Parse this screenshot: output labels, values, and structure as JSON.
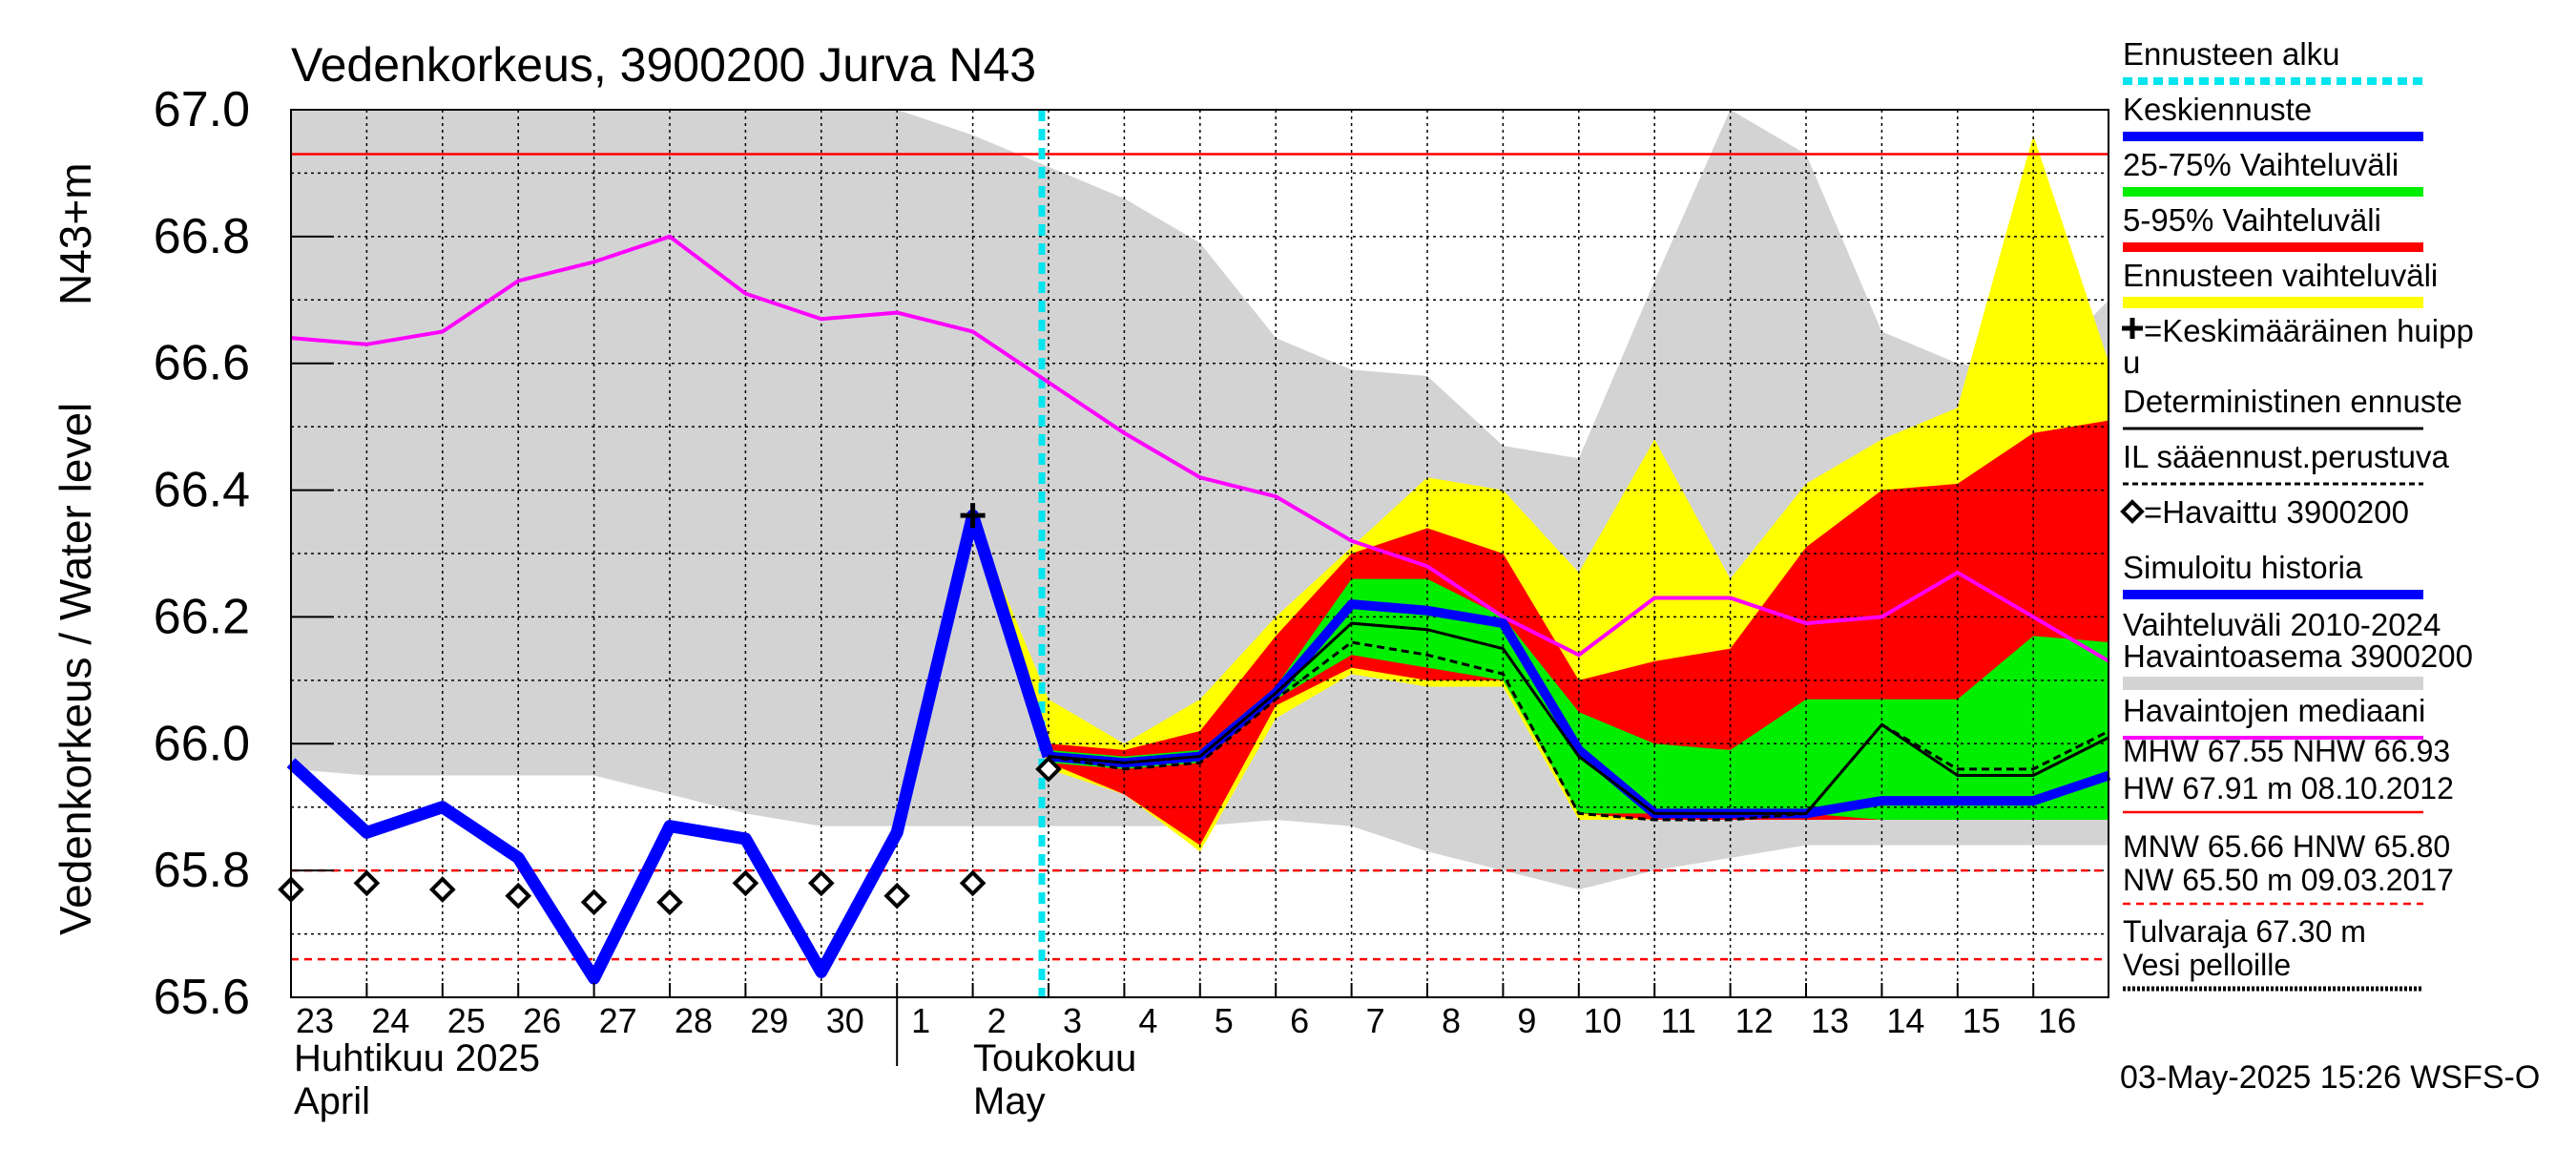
{
  "chart_data": {
    "type": "line",
    "title": "Vedenkorkeus, 3900200 Jurva N43",
    "ylabel": "Vedenkorkeus / Water level",
    "ylabel_unit": "N43+m",
    "ylim": [
      65.6,
      67.0
    ],
    "y_ticks": [
      "65.6",
      "65.8",
      "66.0",
      "66.2",
      "66.4",
      "66.6",
      "66.8",
      "67.0"
    ],
    "grid": true,
    "legend_position": "right",
    "x_tick_labels": [
      "23",
      "24",
      "25",
      "26",
      "27",
      "28",
      "29",
      "30",
      "1",
      "2",
      "3",
      "4",
      "5",
      "6",
      "7",
      "8",
      "9",
      "10",
      "11",
      "12",
      "13",
      "14",
      "15",
      "16"
    ],
    "month_labels": [
      {
        "fi": "Huhtikuu  2025",
        "en": "April"
      },
      {
        "fi": "Toukokuu",
        "en": "May"
      }
    ],
    "forecast_start_index": 10,
    "colors": {
      "forecast_start": "#00e5ee",
      "mean_forecast": "#0000ff",
      "band_25_75": "#00ee00",
      "band_5_95": "#ff0000",
      "band_forecast": "#ffff00",
      "deterministic": "#000000",
      "weather_based": "#000000",
      "observed": "#000000",
      "simulated_history": "#0000ff",
      "variation_band": "#d3d3d3",
      "median": "#ff00ff",
      "mhw_line": "#ff0000",
      "mnw_line": "#ff0000",
      "flood_line": "#000000"
    },
    "variation_band": {
      "x": [
        0,
        1,
        2,
        3,
        4,
        5,
        6,
        7,
        8,
        9,
        10,
        11,
        12,
        13,
        14,
        15,
        16,
        17,
        18,
        19,
        20,
        21,
        22,
        23,
        24
      ],
      "upper": [
        67.0,
        67.0,
        67.0,
        67.0,
        67.0,
        67.0,
        67.0,
        67.0,
        67.0,
        66.96,
        66.91,
        66.86,
        66.79,
        66.64,
        66.59,
        66.58,
        66.47,
        66.45,
        66.73,
        67.0,
        66.93,
        66.65,
        66.6,
        66.58,
        66.7
      ],
      "lower": [
        65.96,
        65.95,
        65.95,
        65.95,
        65.95,
        65.92,
        65.89,
        65.87,
        65.87,
        65.87,
        65.87,
        65.87,
        65.87,
        65.88,
        65.87,
        65.83,
        65.8,
        65.77,
        65.8,
        65.82,
        65.84,
        65.84,
        65.84,
        65.84,
        65.84
      ]
    },
    "forecast_band": {
      "x": [
        9,
        10,
        11,
        12,
        13,
        14,
        15,
        16,
        17,
        18,
        19,
        20,
        21,
        22,
        23,
        24
      ],
      "upper": [
        66.36,
        66.07,
        66.0,
        66.07,
        66.2,
        66.31,
        66.42,
        66.4,
        66.27,
        66.48,
        66.26,
        66.41,
        66.48,
        66.53,
        66.96,
        66.6
      ],
      "lower": [
        66.36,
        65.96,
        65.92,
        65.83,
        66.04,
        66.11,
        66.09,
        66.09,
        65.88,
        65.88,
        65.88,
        65.88,
        65.88,
        65.88,
        65.88,
        65.88
      ]
    },
    "band_5_95": {
      "x": [
        9,
        10,
        11,
        12,
        13,
        14,
        15,
        16,
        17,
        18,
        19,
        20,
        21,
        22,
        23,
        24
      ],
      "upper": [
        66.36,
        66.0,
        65.99,
        66.02,
        66.17,
        66.3,
        66.34,
        66.3,
        66.1,
        66.13,
        66.15,
        66.31,
        66.4,
        66.41,
        66.49,
        66.51
      ],
      "lower": [
        66.36,
        65.97,
        65.92,
        65.84,
        66.06,
        66.12,
        66.1,
        66.1,
        65.89,
        65.88,
        65.88,
        65.88,
        65.88,
        65.88,
        65.88,
        65.89
      ]
    },
    "band_25_75": {
      "x": [
        10,
        11,
        12,
        13,
        14,
        15,
        16,
        17,
        18,
        19,
        20,
        21,
        22,
        23,
        24
      ],
      "upper": [
        65.99,
        65.98,
        65.99,
        66.09,
        66.26,
        66.26,
        66.2,
        66.05,
        66.0,
        65.99,
        66.07,
        66.07,
        66.07,
        66.17,
        66.16
      ],
      "lower": [
        65.97,
        65.96,
        65.97,
        66.07,
        66.14,
        66.12,
        66.1,
        65.89,
        65.89,
        65.89,
        65.89,
        65.88,
        65.88,
        65.88,
        65.88
      ]
    },
    "median": {
      "name": "Havaintojen mediaani",
      "x": [
        0,
        1,
        2,
        3,
        4,
        5,
        6,
        7,
        8,
        9,
        10,
        11,
        12,
        13,
        14,
        15,
        16,
        17,
        18,
        19,
        20,
        21,
        22,
        23,
        24
      ],
      "y": [
        66.64,
        66.63,
        66.65,
        66.73,
        66.76,
        66.8,
        66.71,
        66.67,
        66.68,
        66.65,
        66.57,
        66.49,
        66.42,
        66.39,
        66.32,
        66.28,
        66.2,
        66.14,
        66.23,
        66.23,
        66.19,
        66.2,
        66.27,
        66.2,
        66.13
      ]
    },
    "simulated_history": {
      "name": "Simuloitu historia",
      "x": [
        0,
        1,
        2,
        3,
        4,
        5,
        6,
        7,
        8,
        9,
        10
      ],
      "y": [
        65.97,
        65.86,
        65.9,
        65.82,
        65.63,
        65.87,
        65.85,
        65.64,
        65.86,
        66.36,
        65.98
      ]
    },
    "mean_forecast": {
      "name": "Keskiennuste",
      "x": [
        10,
        11,
        12,
        13,
        14,
        15,
        16,
        17,
        18,
        19,
        20,
        21,
        22,
        23,
        24
      ],
      "y": [
        65.98,
        65.97,
        65.98,
        66.08,
        66.22,
        66.21,
        66.19,
        65.99,
        65.89,
        65.89,
        65.89,
        65.91,
        65.91,
        65.91,
        65.95
      ]
    },
    "deterministic": {
      "name": "Deterministinen ennuste",
      "x": [
        10,
        11,
        12,
        13,
        14,
        15,
        16,
        17,
        18,
        19,
        20,
        21,
        22,
        23,
        24
      ],
      "y": [
        65.98,
        65.97,
        65.98,
        66.08,
        66.19,
        66.18,
        66.15,
        65.98,
        65.89,
        65.89,
        65.89,
        66.03,
        65.95,
        65.95,
        66.01
      ]
    },
    "weather_based": {
      "name": "IL sääennust.perustuva",
      "x": [
        10,
        11,
        12,
        13,
        14,
        15,
        16,
        17,
        18,
        19,
        20,
        21,
        22,
        23,
        24
      ],
      "y": [
        65.98,
        65.96,
        65.97,
        66.07,
        66.16,
        66.14,
        66.11,
        65.89,
        65.88,
        65.88,
        65.89,
        66.03,
        65.96,
        65.96,
        66.02
      ]
    },
    "observed": {
      "name": "Havaittu 3900200",
      "x": [
        0,
        1,
        2,
        3,
        4,
        5,
        6,
        7,
        8,
        9,
        10
      ],
      "y": [
        65.77,
        65.78,
        65.77,
        65.76,
        65.75,
        65.75,
        65.78,
        65.78,
        65.76,
        65.78,
        65.96
      ]
    },
    "mean_peak": {
      "x": 9,
      "y": 66.36
    },
    "reference_lines": {
      "nhw": 66.93,
      "mhw_dashed": 65.8,
      "low_dashed": 65.66
    },
    "legend": [
      {
        "label": "Ennusteen alku",
        "style": "dotted-cyan"
      },
      {
        "label": "Keskiennuste",
        "style": "blue-thick"
      },
      {
        "label": "25-75% Vaihteluväli",
        "style": "green-thick"
      },
      {
        "label": "5-95% Vaihteluväli",
        "style": "red-thick"
      },
      {
        "label": "Ennusteen vaihteluväli",
        "style": "yellow-thick"
      },
      {
        "label": "=Keskimääräinen huipp",
        "label2": "u",
        "style": "cross"
      },
      {
        "label": "Deterministinen ennuste",
        "style": "black-line"
      },
      {
        "label": "IL sääennust.perustuva",
        "style": "black-dashed"
      },
      {
        "label": "=Havaittu 3900200",
        "style": "diamond"
      },
      {
        "label": "Simuloitu historia",
        "style": "blue-thick"
      },
      {
        "label": "Vaihteluväli 2010-2024",
        "label2": " Havaintoasema 3900200",
        "style": "gray-thick"
      },
      {
        "label": "Havaintojen mediaani",
        "style": "magenta-line"
      }
    ],
    "stats": [
      {
        "line1": "MHW  67.55 NHW  66.93",
        "line2": "HW  67.91 m 08.10.2012",
        "style": "red-line"
      },
      {
        "line1": "MNW  65.66 HNW  65.80",
        "line2": "NW  65.50 m 09.03.2017",
        "style": "red-dashed"
      },
      {
        "line1": "Tulvaraja 67.30 m",
        "line2": "Vesi pelloille",
        "style": "black-dotted"
      }
    ],
    "timestamp": "03-May-2025 15:26 WSFS-O"
  }
}
